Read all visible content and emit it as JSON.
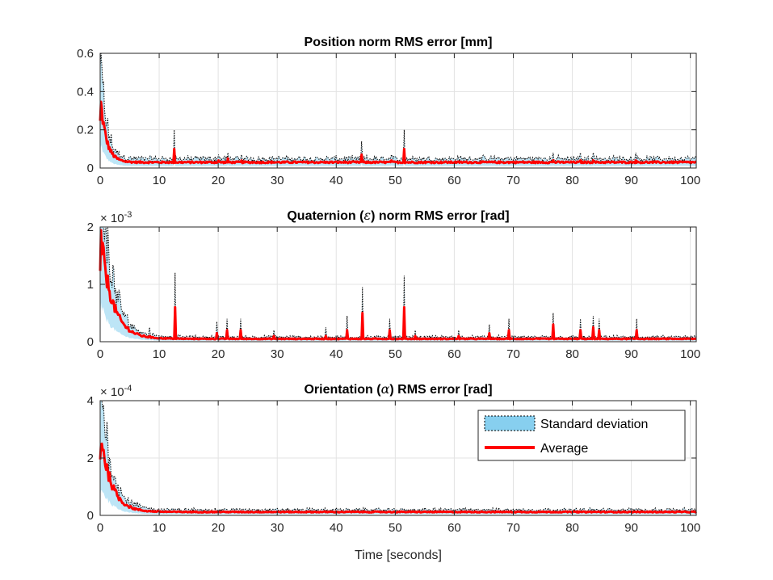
{
  "chart_data": [
    {
      "type": "line",
      "title_pre": "Position norm RMS error [mm]",
      "title_greek": "",
      "title_post": "",
      "xlabel": "",
      "ylabel": "",
      "xlim": [
        0,
        101
      ],
      "ylim": [
        0,
        0.6
      ],
      "xticks": [
        0,
        10,
        20,
        30,
        40,
        50,
        60,
        70,
        80,
        90,
        100
      ],
      "xtick_labels": [
        "0",
        "10",
        "20",
        "30",
        "40",
        "50",
        "60",
        "70",
        "80",
        "90",
        "100"
      ],
      "yticks": [
        0,
        0.2,
        0.4,
        0.6
      ],
      "ytick_labels": [
        "0",
        "0.2",
        "0.4",
        "0.6"
      ],
      "multiplier_base": "",
      "multiplier_exp": "",
      "grid": true,
      "baseline": 0.03,
      "initial": 0.38,
      "tau": 1.0,
      "spikes": [
        {
          "x": 12.6,
          "avg": 0.1,
          "std": 0.2
        },
        {
          "x": 20.1,
          "avg": 0.04,
          "std": 0.07
        },
        {
          "x": 21.6,
          "avg": 0.05,
          "std": 0.08
        },
        {
          "x": 23.9,
          "avg": 0.04,
          "std": 0.07
        },
        {
          "x": 44.3,
          "avg": 0.07,
          "std": 0.14
        },
        {
          "x": 49.3,
          "avg": 0.04,
          "std": 0.07
        },
        {
          "x": 51.5,
          "avg": 0.1,
          "std": 0.2
        },
        {
          "x": 76.8,
          "avg": 0.04,
          "std": 0.08
        },
        {
          "x": 81.4,
          "avg": 0.04,
          "std": 0.08
        },
        {
          "x": 83.6,
          "avg": 0.04,
          "std": 0.08
        },
        {
          "x": 90.8,
          "avg": 0.04,
          "std": 0.08
        }
      ],
      "series": [
        {
          "name": "Standard deviation",
          "color": "#87cfef"
        },
        {
          "name": "Average",
          "color": "#ff0000"
        }
      ]
    },
    {
      "type": "line",
      "title_pre": "Quaternion (",
      "title_greek": "ε",
      "title_post": ") norm RMS error [rad]",
      "xlabel": "",
      "ylabel": "",
      "xlim": [
        0,
        101
      ],
      "ylim": [
        0,
        0.002
      ],
      "xticks": [
        0,
        10,
        20,
        30,
        40,
        50,
        60,
        70,
        80,
        90,
        100
      ],
      "xtick_labels": [
        "0",
        "10",
        "20",
        "30",
        "40",
        "50",
        "60",
        "70",
        "80",
        "90",
        "100"
      ],
      "yticks": [
        0,
        0.001,
        0.002
      ],
      "ytick_labels": [
        "0",
        "1",
        "2"
      ],
      "multiplier_base": "× 10",
      "multiplier_exp": "-3",
      "grid": true,
      "baseline": 5e-05,
      "initial": 0.0019,
      "tau": 2.0,
      "spikes": [
        {
          "x": 8.4,
          "avg": 0.0001,
          "std": 0.00025
        },
        {
          "x": 12.7,
          "avg": 0.0006,
          "std": 0.0012
        },
        {
          "x": 19.8,
          "avg": 0.00015,
          "std": 0.00035
        },
        {
          "x": 21.5,
          "avg": 0.0002,
          "std": 0.0004
        },
        {
          "x": 23.8,
          "avg": 0.0002,
          "std": 0.0004
        },
        {
          "x": 29.5,
          "avg": 0.0001,
          "std": 0.0002
        },
        {
          "x": 38.3,
          "avg": 0.0001,
          "std": 0.00025
        },
        {
          "x": 41.8,
          "avg": 0.0002,
          "std": 0.00045
        },
        {
          "x": 44.4,
          "avg": 0.0005,
          "std": 0.00095
        },
        {
          "x": 49.1,
          "avg": 0.0002,
          "std": 0.0004
        },
        {
          "x": 51.5,
          "avg": 0.0006,
          "std": 0.00115
        },
        {
          "x": 53.4,
          "avg": 0.0001,
          "std": 0.0002
        },
        {
          "x": 60.8,
          "avg": 0.0001,
          "std": 0.0002
        },
        {
          "x": 65.9,
          "avg": 0.00015,
          "std": 0.0003
        },
        {
          "x": 69.2,
          "avg": 0.0002,
          "std": 0.0004
        },
        {
          "x": 76.8,
          "avg": 0.0003,
          "std": 0.0005
        },
        {
          "x": 81.4,
          "avg": 0.0002,
          "std": 0.0004
        },
        {
          "x": 83.6,
          "avg": 0.00025,
          "std": 0.00045
        },
        {
          "x": 84.6,
          "avg": 0.0002,
          "std": 0.0004
        },
        {
          "x": 90.9,
          "avg": 0.0002,
          "std": 0.0004
        }
      ]
    },
    {
      "type": "line",
      "title_pre": "Orientation (",
      "title_greek": "α",
      "title_post": ") RMS error [rad]",
      "xlabel": "Time [seconds]",
      "ylabel": "",
      "xlim": [
        0,
        101
      ],
      "ylim": [
        0,
        0.0004
      ],
      "xticks": [
        0,
        10,
        20,
        30,
        40,
        50,
        60,
        70,
        80,
        90,
        100
      ],
      "xtick_labels": [
        "0",
        "10",
        "20",
        "30",
        "40",
        "50",
        "60",
        "70",
        "80",
        "90",
        "100"
      ],
      "yticks": [
        0,
        0.0002,
        0.0004
      ],
      "ytick_labels": [
        "0",
        "2",
        "4"
      ],
      "multiplier_base": "× 10",
      "multiplier_exp": "-4",
      "grid": true,
      "baseline": 1.2e-05,
      "initial": 0.0003,
      "tau": 1.8,
      "spikes": [],
      "legend": {
        "location": "top-right",
        "entries": [
          {
            "label": "Standard deviation",
            "color": "#87cfef"
          },
          {
            "label": "Average",
            "color": "#ff0000"
          }
        ]
      }
    }
  ]
}
